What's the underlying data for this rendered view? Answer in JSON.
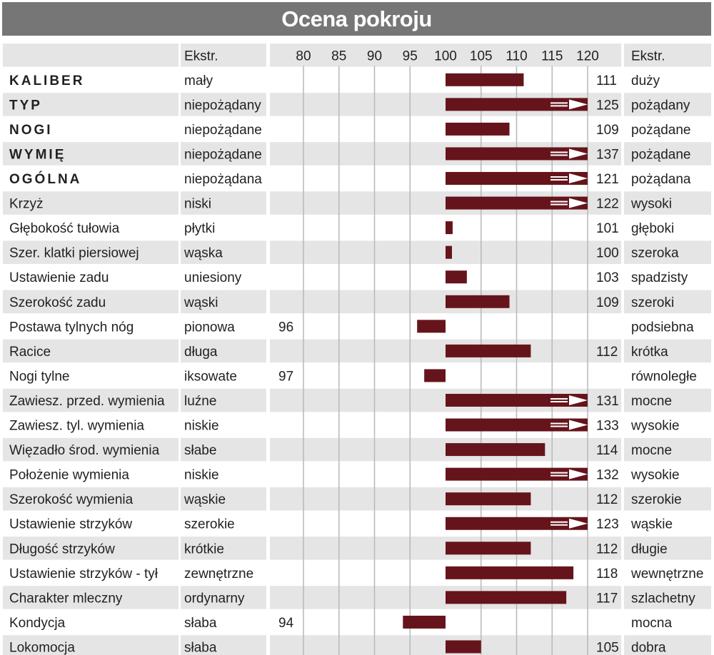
{
  "title": "Ocena pokroju",
  "header": {
    "ekstr_left": "Ekstr.",
    "ekstr_right": "Ekstr."
  },
  "colors": {
    "bar": "#66141b",
    "header_bg": "#767676",
    "stripe": "#e5e5e5",
    "grid": "#b8b8b8"
  },
  "chart_data": {
    "type": "bar",
    "orientation": "horizontal",
    "baseline": 100,
    "xlim": [
      75,
      120
    ],
    "ticks": [
      80,
      85,
      90,
      95,
      100,
      105,
      110,
      115,
      120
    ],
    "grid": true,
    "overflow_marker": "arrow at 120 for values above scale",
    "rows": [
      {
        "trait": "KALIBER",
        "bold": true,
        "left": "mały",
        "right": "duży",
        "value": 111
      },
      {
        "trait": "TYP",
        "bold": true,
        "left": "niepożądany",
        "right": "pożądany",
        "value": 125
      },
      {
        "trait": "NOGI",
        "bold": true,
        "left": "niepożądane",
        "right": "pożądane",
        "value": 109
      },
      {
        "trait": "WYMIĘ",
        "bold": true,
        "left": "niepożądane",
        "right": "pożądane",
        "value": 137
      },
      {
        "trait": "OGÓLNA",
        "bold": true,
        "left": "niepożądana",
        "right": "pożądana",
        "value": 121
      },
      {
        "trait": "Krzyż",
        "bold": false,
        "left": "niski",
        "right": "wysoki",
        "value": 122
      },
      {
        "trait": "Głębokość tułowia",
        "bold": false,
        "left": "płytki",
        "right": "głęboki",
        "value": 101
      },
      {
        "trait": "Szer. klatki piersiowej",
        "bold": false,
        "left": "wąska",
        "right": "szeroka",
        "value": 100
      },
      {
        "trait": "Ustawienie zadu",
        "bold": false,
        "left": "uniesiony",
        "right": "spadzisty",
        "value": 103
      },
      {
        "trait": "Szerokość zadu",
        "bold": false,
        "left": "wąski",
        "right": "szeroki",
        "value": 109
      },
      {
        "trait": "Postawa tylnych nóg",
        "bold": false,
        "left": "pionowa",
        "right": "podsiebna",
        "value": 96
      },
      {
        "trait": "Racice",
        "bold": false,
        "left": "długa",
        "right": "krótka",
        "value": 112
      },
      {
        "trait": "Nogi tylne",
        "bold": false,
        "left": "iksowate",
        "right": "równoległe",
        "value": 97
      },
      {
        "trait": "Zawiesz. przed. wymienia",
        "bold": false,
        "left": "luźne",
        "right": "mocne",
        "value": 131
      },
      {
        "trait": "Zawiesz. tyl. wymienia",
        "bold": false,
        "left": "niskie",
        "right": "wysokie",
        "value": 133
      },
      {
        "trait": "Więzadło środ. wymienia",
        "bold": false,
        "left": "słabe",
        "right": "mocne",
        "value": 114
      },
      {
        "trait": "Położenie wymienia",
        "bold": false,
        "left": "niskie",
        "right": "wysokie",
        "value": 132
      },
      {
        "trait": "Szerokość wymienia",
        "bold": false,
        "left": "wąskie",
        "right": "szerokie",
        "value": 112
      },
      {
        "trait": "Ustawienie strzyków",
        "bold": false,
        "left": "szerokie",
        "right": "wąskie",
        "value": 123
      },
      {
        "trait": "Długość strzyków",
        "bold": false,
        "left": "krótkie",
        "right": "długie",
        "value": 112
      },
      {
        "trait": "Ustawienie strzyków - tył",
        "bold": false,
        "left": "zewnętrzne",
        "right": "wewnętrzne",
        "value": 118
      },
      {
        "trait": "Charakter mleczny",
        "bold": false,
        "left": "ordynarny",
        "right": "szlachetny",
        "value": 117
      },
      {
        "trait": "Kondycja",
        "bold": false,
        "left": "słaba",
        "right": "mocna",
        "value": 94
      },
      {
        "trait": "Lokomocja",
        "bold": false,
        "left": "słaba",
        "right": "dobra",
        "value": 105
      }
    ]
  }
}
